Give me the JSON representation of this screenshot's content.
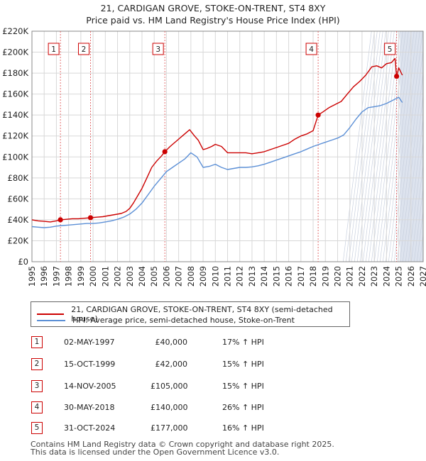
{
  "header": {
    "title": "21, CARDIGAN GROVE, STOKE-ON-TRENT, ST4 8XY",
    "subtitle": "Price paid vs. HM Land Registry's House Price Index (HPI)"
  },
  "colors": {
    "price": "#cc0000",
    "hpi": "#5b8fd6",
    "sale_marker": "#cc0000",
    "future_band": "#dde3ee"
  },
  "chart_data": {
    "type": "line",
    "title": "21, CARDIGAN GROVE, STOKE-ON-TRENT, ST4 8XY",
    "subtitle": "Price paid vs. HM Land Registry's House Price Index (HPI)",
    "xlabel": "",
    "ylabel": "",
    "xlim": [
      1995,
      2027
    ],
    "ylim": [
      0,
      220000
    ],
    "y_ticks": [
      0,
      20000,
      40000,
      60000,
      80000,
      100000,
      120000,
      140000,
      160000,
      180000,
      200000,
      220000
    ],
    "y_tick_labels": [
      "£0",
      "£20K",
      "£40K",
      "£60K",
      "£80K",
      "£100K",
      "£120K",
      "£140K",
      "£160K",
      "£180K",
      "£200K",
      "£220K"
    ],
    "x_tick_labels": [
      "1995",
      "1996",
      "1997",
      "1998",
      "1999",
      "2000",
      "2001",
      "2002",
      "2003",
      "2004",
      "2005",
      "2006",
      "2007",
      "2008",
      "2009",
      "2010",
      "2011",
      "2012",
      "2013",
      "2014",
      "2015",
      "2016",
      "2017",
      "2018",
      "2019",
      "2020",
      "2021",
      "2022",
      "2023",
      "2024",
      "2025",
      "2026",
      "2027"
    ],
    "grid": true,
    "forecast_start": 2025.1,
    "series": [
      {
        "name": "21, CARDIGAN GROVE, STOKE-ON-TRENT, ST4 8XY (semi-detached house)",
        "color": "#cc0000",
        "x": [
          1995.0,
          1995.5,
          1996.0,
          1996.5,
          1997.0,
          1997.33,
          1997.8,
          1998.3,
          1998.8,
          1999.3,
          1999.79,
          2000.3,
          2000.8,
          2001.3,
          2001.8,
          2002.3,
          2002.7,
          2003.0,
          2003.3,
          2003.6,
          2004.0,
          2004.4,
          2004.8,
          2005.2,
          2005.6,
          2005.87,
          2006.3,
          2006.8,
          2007.3,
          2007.7,
          2007.9,
          2008.3,
          2008.6,
          2009.0,
          2009.3,
          2009.7,
          2010.0,
          2010.5,
          2011.0,
          2011.5,
          2012.0,
          2012.5,
          2013.0,
          2013.5,
          2014.0,
          2014.5,
          2015.0,
          2015.5,
          2016.0,
          2016.5,
          2017.0,
          2017.5,
          2018.0,
          2018.41,
          2018.8,
          2019.3,
          2019.8,
          2020.3,
          2020.8,
          2021.3,
          2021.8,
          2022.3,
          2022.8,
          2023.2,
          2023.6,
          2024.0,
          2024.4,
          2024.7,
          2024.83,
          2025.0,
          2025.3
        ],
        "y": [
          40000,
          39000,
          38500,
          38000,
          39000,
          40000,
          40500,
          41000,
          41000,
          41500,
          42000,
          42500,
          43000,
          44000,
          45000,
          46000,
          48000,
          51000,
          56000,
          62000,
          70000,
          80000,
          90000,
          96000,
          101000,
          105000,
          110000,
          115000,
          120000,
          124000,
          126000,
          120000,
          116000,
          107000,
          108000,
          110000,
          112000,
          110000,
          104000,
          104000,
          104000,
          104000,
          103000,
          104000,
          105000,
          107000,
          109000,
          111000,
          113000,
          117000,
          120000,
          122000,
          125000,
          140000,
          143000,
          147000,
          150000,
          153000,
          160000,
          167000,
          172000,
          178000,
          186000,
          187000,
          185000,
          189000,
          190000,
          194000,
          177000,
          185000,
          178000
        ]
      },
      {
        "name": "HPI: Average price, semi-detached house, Stoke-on-Trent",
        "color": "#5b8fd6",
        "x": [
          1995.0,
          1995.5,
          1996.0,
          1996.5,
          1997.0,
          1997.5,
          1998.0,
          1998.5,
          1999.0,
          1999.5,
          2000.0,
          2000.5,
          2001.0,
          2001.5,
          2002.0,
          2002.5,
          2003.0,
          2003.5,
          2004.0,
          2004.5,
          2005.0,
          2005.5,
          2006.0,
          2006.5,
          2007.0,
          2007.5,
          2008.0,
          2008.5,
          2009.0,
          2009.5,
          2010.0,
          2010.5,
          2011.0,
          2011.5,
          2012.0,
          2012.5,
          2013.0,
          2013.5,
          2014.0,
          2014.5,
          2015.0,
          2015.5,
          2016.0,
          2016.5,
          2017.0,
          2017.5,
          2018.0,
          2018.5,
          2019.0,
          2019.5,
          2020.0,
          2020.5,
          2021.0,
          2021.5,
          2022.0,
          2022.5,
          2023.0,
          2023.5,
          2024.0,
          2024.5,
          2025.0,
          2025.3
        ],
        "y": [
          33500,
          33000,
          32500,
          33000,
          34000,
          34500,
          35000,
          35500,
          36000,
          36500,
          36500,
          37000,
          38000,
          39000,
          40500,
          42500,
          45500,
          50000,
          56000,
          64000,
          72000,
          79000,
          86000,
          90000,
          94000,
          98000,
          104000,
          100000,
          90000,
          91000,
          93000,
          90000,
          88000,
          89000,
          90000,
          90000,
          90500,
          91500,
          93000,
          95000,
          97000,
          99000,
          101000,
          103000,
          105000,
          107500,
          110000,
          112000,
          114000,
          116000,
          118000,
          121000,
          128000,
          136000,
          143000,
          147000,
          148000,
          149000,
          151000,
          154000,
          157000,
          152000
        ]
      }
    ],
    "sales": [
      {
        "label": "1",
        "x": 1997.33,
        "y": 40000
      },
      {
        "label": "2",
        "x": 1999.79,
        "y": 42000
      },
      {
        "label": "3",
        "x": 2005.87,
        "y": 105000
      },
      {
        "label": "4",
        "x": 2018.41,
        "y": 140000
      },
      {
        "label": "5",
        "x": 2024.83,
        "y": 177000
      }
    ]
  },
  "legend": {
    "price_label": "21, CARDIGAN GROVE, STOKE-ON-TRENT, ST4 8XY (semi-detached house)",
    "hpi_label": "HPI: Average price, semi-detached house, Stoke-on-Trent"
  },
  "transactions": [
    {
      "num": "1",
      "date": "02-MAY-1997",
      "price": "£40,000",
      "hpi": "17% ↑ HPI"
    },
    {
      "num": "2",
      "date": "15-OCT-1999",
      "price": "£42,000",
      "hpi": "15% ↑ HPI"
    },
    {
      "num": "3",
      "date": "14-NOV-2005",
      "price": "£105,000",
      "hpi": "15% ↑ HPI"
    },
    {
      "num": "4",
      "date": "30-MAY-2018",
      "price": "£140,000",
      "hpi": "26% ↑ HPI"
    },
    {
      "num": "5",
      "date": "31-OCT-2024",
      "price": "£177,000",
      "hpi": "16% ↑ HPI"
    }
  ],
  "footer": {
    "line1": "Contains HM Land Registry data © Crown copyright and database right 2025.",
    "line2": "This data is licensed under the Open Government Licence v3.0."
  }
}
